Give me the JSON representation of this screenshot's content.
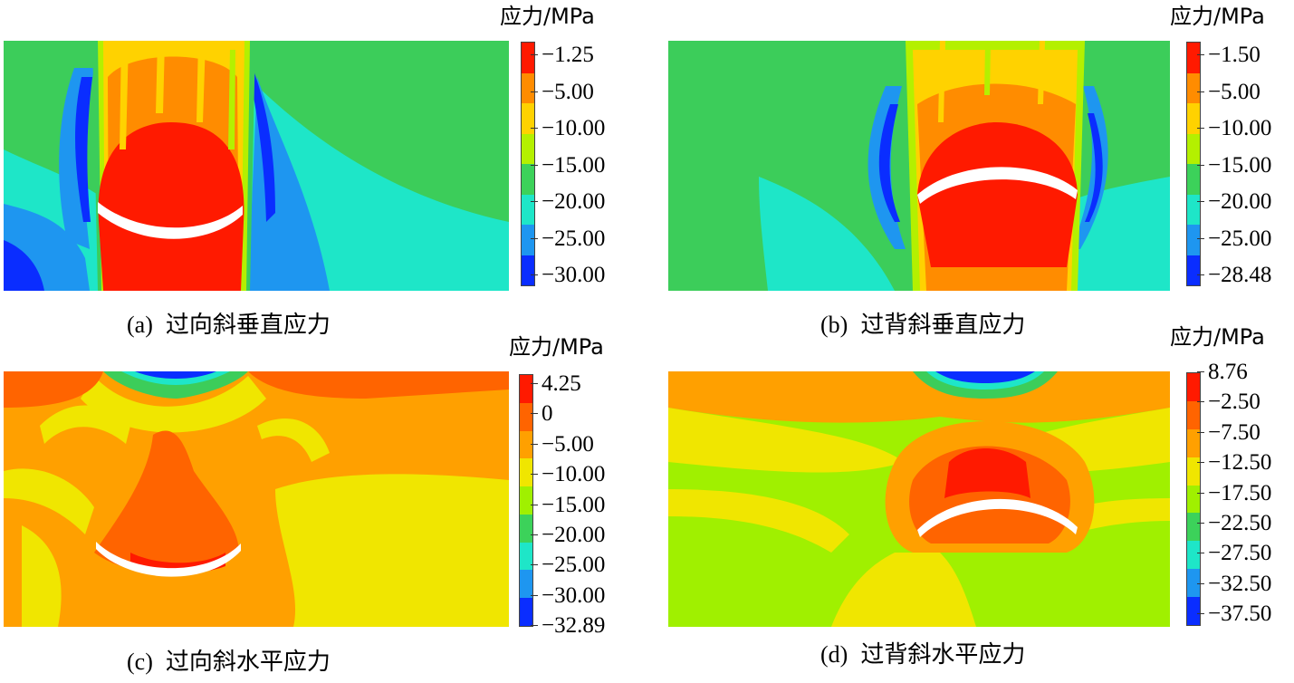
{
  "panels": [
    {
      "id": "a",
      "unit": "应力/MPa",
      "caption_tag": "(a)",
      "caption_text": "过向斜垂直应力",
      "ticks": [
        "−1.25",
        "−5.00",
        "−10.00",
        "−15.00",
        "−20.00",
        "−25.00",
        "−30.00"
      ],
      "legend_colors": [
        "#ff1a00",
        "#ff8c00",
        "#ffd200",
        "#b4f000",
        "#3cd25a",
        "#1ee6c8",
        "#1e96f0",
        "#0a2dff"
      ]
    },
    {
      "id": "b",
      "unit": "应力/MPa",
      "caption_tag": "(b)",
      "caption_text": "过背斜垂直应力",
      "ticks": [
        "−1.50",
        "−5.00",
        "−10.00",
        "−15.00",
        "−20.00",
        "−25.00",
        "−28.48"
      ],
      "legend_colors": [
        "#ff1a00",
        "#ff8c00",
        "#ffd200",
        "#b4f000",
        "#3cd25a",
        "#1ee6c8",
        "#1e96f0",
        "#0a2dff"
      ]
    },
    {
      "id": "c",
      "unit": "应力/MPa",
      "caption_tag": "(c)",
      "caption_text": "过向斜水平应力",
      "ticks": [
        "4.25",
        "0",
        "−5.00",
        "−10.00",
        "−15.00",
        "−20.00",
        "−25.00",
        "−30.00",
        "−32.89"
      ],
      "legend_colors": [
        "#ff1a00",
        "#ff6400",
        "#ffa000",
        "#f0e600",
        "#a0f000",
        "#3cd25a",
        "#1ee6c8",
        "#1e96f0",
        "#0a2dff"
      ]
    },
    {
      "id": "d",
      "unit": "应力/MPa",
      "caption_tag": "(d)",
      "caption_text": "过背斜水平应力",
      "ticks": [
        "8.76",
        "−2.50",
        "−7.50",
        "−12.50",
        "−17.50",
        "−22.50",
        "−27.50",
        "−32.50",
        "−37.50"
      ],
      "legend_colors": [
        "#ff1a00",
        "#ff6400",
        "#ffa000",
        "#f0e600",
        "#a0f000",
        "#3cd25a",
        "#1ee6c8",
        "#1e96f0",
        "#0a2dff"
      ]
    }
  ]
}
